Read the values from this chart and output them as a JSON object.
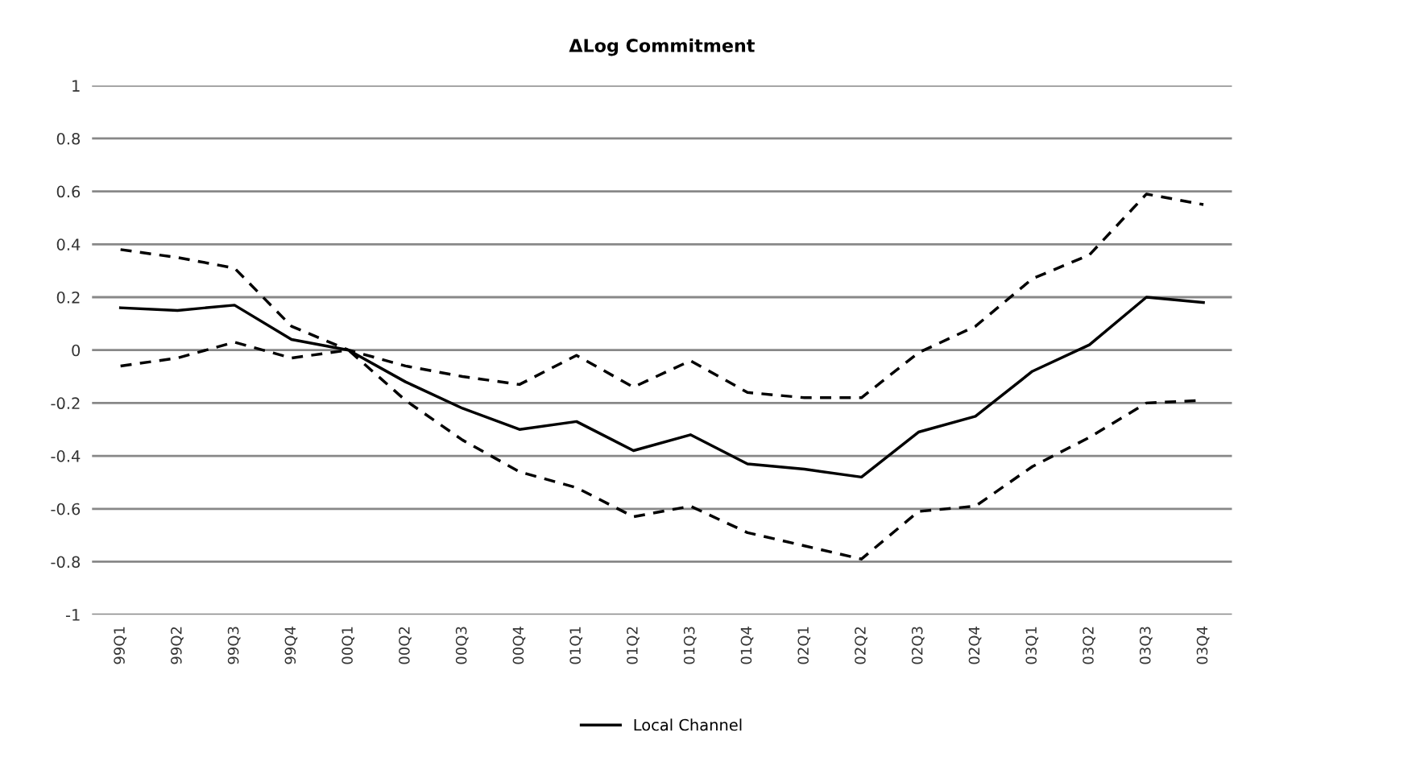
{
  "chart_data": {
    "type": "line",
    "title": "ΔLog Commitment",
    "categories": [
      "99Q1",
      "99Q2",
      "99Q3",
      "99Q4",
      "00Q1",
      "00Q2",
      "00Q3",
      "00Q4",
      "01Q1",
      "01Q2",
      "01Q3",
      "01Q4",
      "02Q1",
      "02Q2",
      "02Q3",
      "02Q4",
      "03Q1",
      "03Q2",
      "03Q3",
      "03Q4"
    ],
    "series": [
      {
        "name": "Local Channel",
        "color": "#000000",
        "line_style": "solid",
        "values": [
          0.16,
          0.15,
          0.17,
          0.04,
          0,
          -0.12,
          -0.22,
          -0.3,
          -0.27,
          -0.38,
          -0.32,
          -0.43,
          -0.45,
          -0.48,
          -0.31,
          -0.25,
          -0.08,
          0.02,
          0.2,
          0.18
        ]
      },
      {
        "color": "#000000",
        "line_style": "dashed",
        "values": [
          0.38,
          0.35,
          0.31,
          0.09,
          0,
          -0.06,
          -0.1,
          -0.13,
          -0.02,
          -0.14,
          -0.04,
          -0.16,
          -0.18,
          -0.18,
          -0.01,
          0.09,
          0.27,
          0.36,
          0.59,
          0.55
        ]
      },
      {
        "color": "#000000",
        "line_style": "dashed",
        "values": [
          -0.06,
          -0.03,
          0.03,
          -0.03,
          0,
          -0.19,
          -0.34,
          -0.46,
          -0.52,
          -0.63,
          -0.59,
          -0.69,
          -0.74,
          -0.79,
          -0.61,
          -0.59,
          -0.44,
          -0.33,
          -0.2,
          -0.19
        ]
      }
    ],
    "ylim": [
      -1,
      1
    ],
    "yticks": [
      -1,
      -0.8,
      -0.6,
      -0.4,
      -0.2,
      0,
      0.2,
      0.4,
      0.6,
      0.8,
      1
    ],
    "grid": "y",
    "legend": "bottom",
    "marker": "none"
  }
}
